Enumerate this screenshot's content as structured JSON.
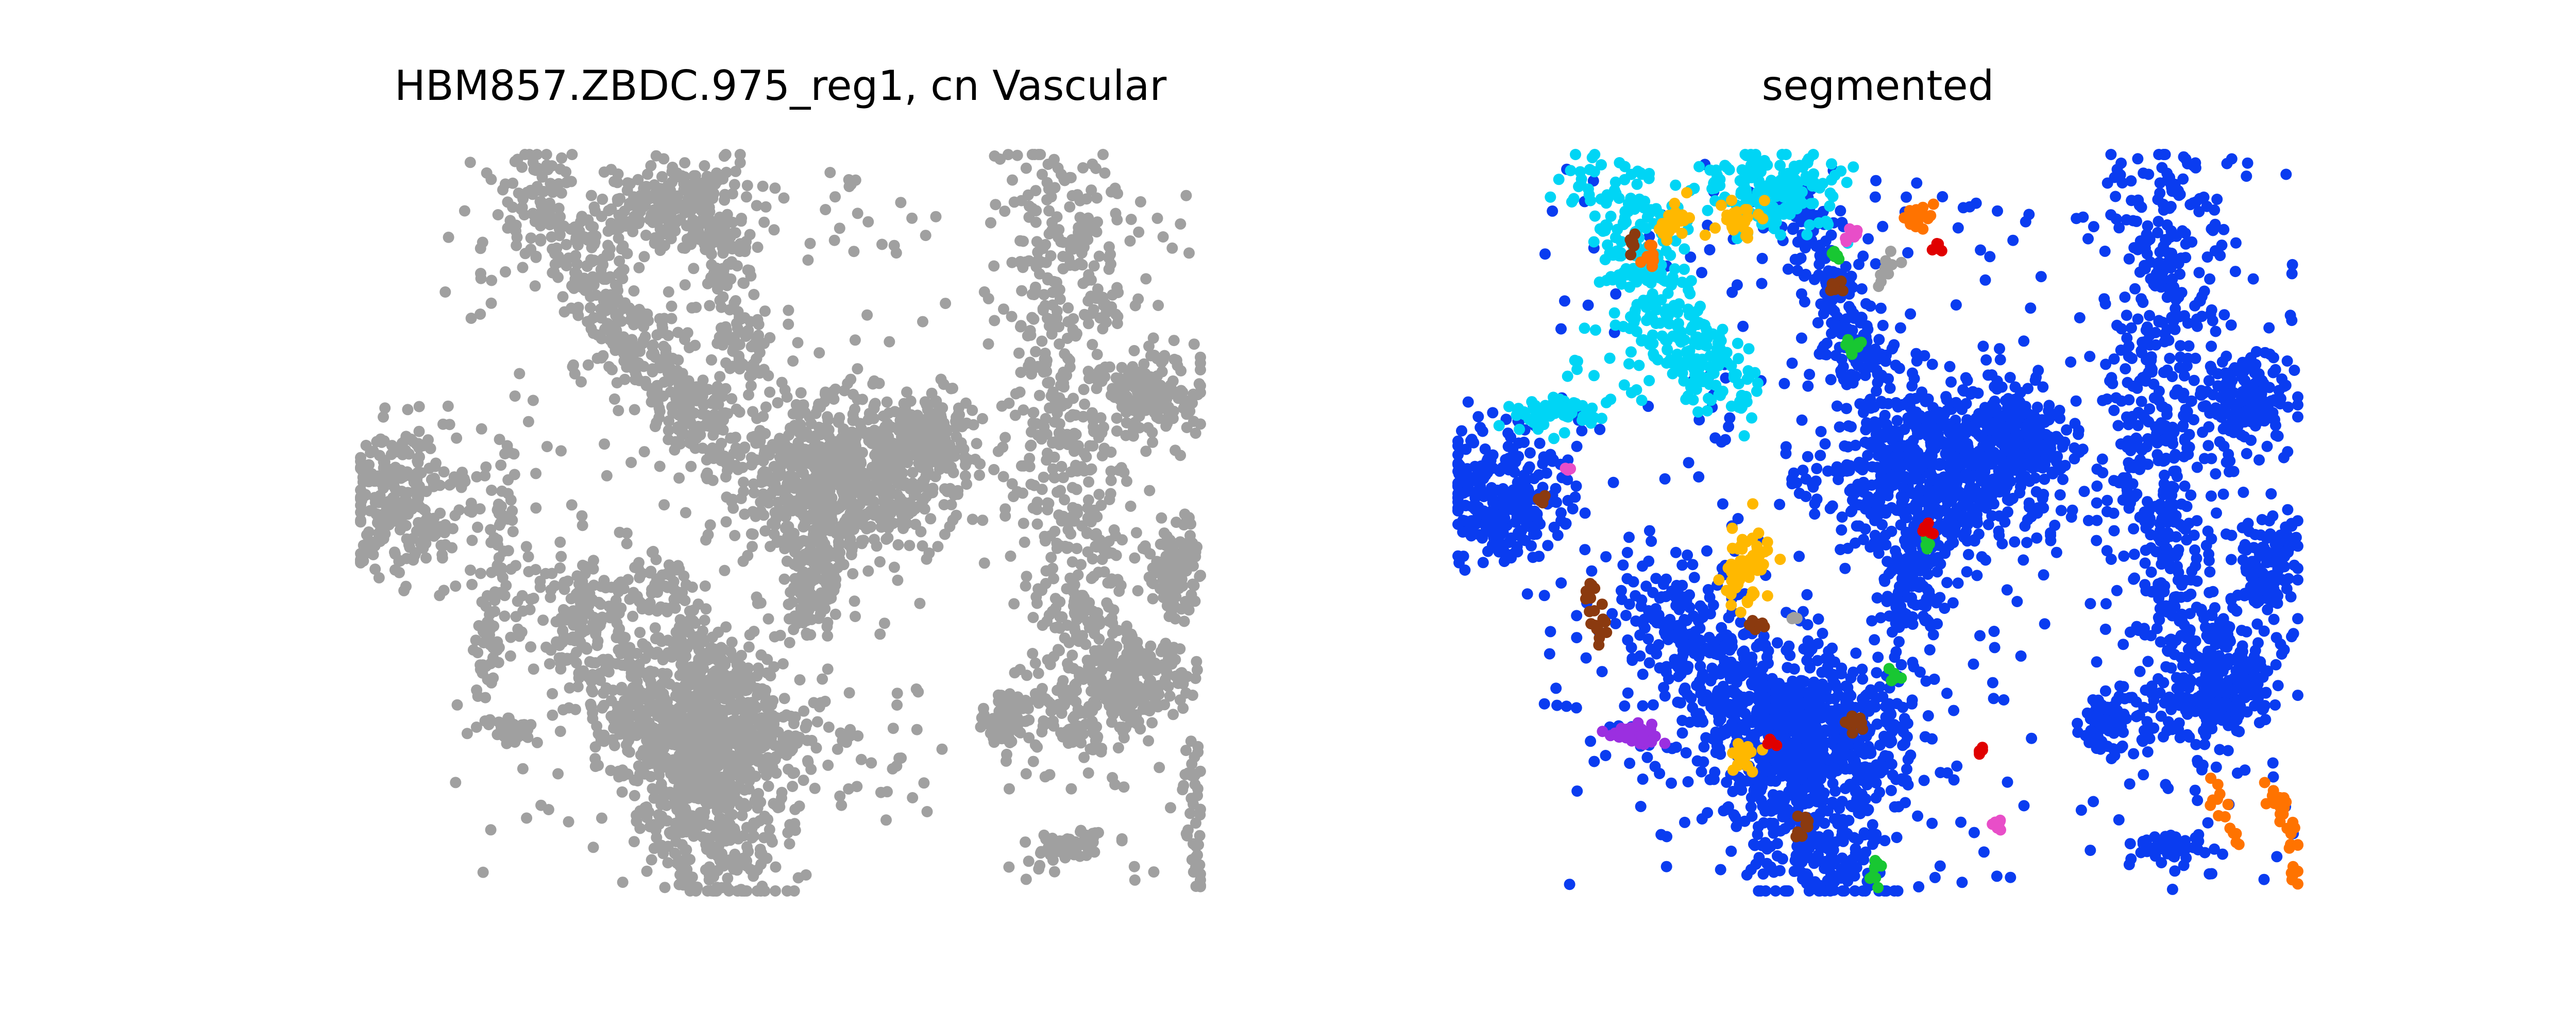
{
  "chart_data": [
    {
      "type": "scatter",
      "title": "HBM857.ZBDC.975_reg1, cn Vascular",
      "axes_visible": false,
      "grid": false,
      "colors": [
        "#a0a0a0"
      ],
      "regions": [
        {
          "name": "",
          "color_index": 0,
          "kind": "blob",
          "cx": 0.05,
          "cy": 0.47,
          "rx": 0.07,
          "ry": 0.09,
          "n": 260
        },
        {
          "name": "",
          "color_index": 0,
          "kind": "band",
          "path": [
            [
              0.2,
              0.02
            ],
            [
              0.26,
              0.14
            ],
            [
              0.32,
              0.25
            ],
            [
              0.38,
              0.33
            ],
            [
              0.42,
              0.38
            ]
          ],
          "width": 0.06,
          "n": 420
        },
        {
          "name": "",
          "color_index": 0,
          "kind": "blob",
          "cx": 0.38,
          "cy": 0.07,
          "rx": 0.08,
          "ry": 0.06,
          "n": 220
        },
        {
          "name": "",
          "color_index": 0,
          "kind": "band",
          "path": [
            [
              0.43,
              0.1
            ],
            [
              0.44,
              0.22
            ],
            [
              0.47,
              0.3
            ]
          ],
          "width": 0.04,
          "n": 110
        },
        {
          "name": "",
          "color_index": 0,
          "kind": "blob",
          "cx": 0.57,
          "cy": 0.43,
          "rx": 0.12,
          "ry": 0.1,
          "n": 700
        },
        {
          "name": "",
          "color_index": 0,
          "kind": "blob",
          "cx": 0.67,
          "cy": 0.38,
          "rx": 0.05,
          "ry": 0.05,
          "n": 160
        },
        {
          "name": "",
          "color_index": 0,
          "kind": "band",
          "path": [
            [
              0.55,
              0.5
            ],
            [
              0.54,
              0.58
            ],
            [
              0.53,
              0.64
            ]
          ],
          "width": 0.04,
          "n": 120
        },
        {
          "name": "",
          "color_index": 0,
          "kind": "band",
          "path": [
            [
              0.23,
              0.58
            ],
            [
              0.28,
              0.66
            ],
            [
              0.33,
              0.74
            ],
            [
              0.38,
              0.82
            ],
            [
              0.42,
              0.92
            ],
            [
              0.44,
              0.99
            ]
          ],
          "width": 0.09,
          "n": 650
        },
        {
          "name": "",
          "color_index": 0,
          "kind": "blob",
          "cx": 0.43,
          "cy": 0.79,
          "rx": 0.11,
          "ry": 0.1,
          "n": 550
        },
        {
          "name": "",
          "color_index": 0,
          "kind": "band",
          "path": [
            [
              0.35,
              0.55
            ],
            [
              0.39,
              0.65
            ],
            [
              0.42,
              0.74
            ]
          ],
          "width": 0.04,
          "n": 130
        },
        {
          "name": "",
          "color_index": 0,
          "kind": "blob",
          "cx": 0.18,
          "cy": 0.78,
          "rx": 0.03,
          "ry": 0.015,
          "n": 40
        },
        {
          "name": "",
          "color_index": 0,
          "kind": "band",
          "path": [
            [
              0.17,
              0.38
            ],
            [
              0.17,
              0.5
            ],
            [
              0.15,
              0.65
            ],
            [
              0.15,
              0.72
            ]
          ],
          "width": 0.02,
          "n": 70
        },
        {
          "name": "",
          "color_index": 0,
          "kind": "sparse",
          "x0": 0.1,
          "x1": 0.7,
          "y0": 0.0,
          "y1": 1.0,
          "n": 260
        },
        {
          "name": "",
          "color_index": 0,
          "kind": "band",
          "path": [
            [
              0.83,
              0.02
            ],
            [
              0.85,
              0.15
            ],
            [
              0.84,
              0.3
            ],
            [
              0.83,
              0.45
            ],
            [
              0.86,
              0.58
            ],
            [
              0.88,
              0.7
            ],
            [
              0.84,
              0.8
            ]
          ],
          "width": 0.08,
          "n": 620
        },
        {
          "name": "",
          "color_index": 0,
          "kind": "blob",
          "cx": 0.94,
          "cy": 0.33,
          "rx": 0.05,
          "ry": 0.05,
          "n": 150
        },
        {
          "name": "",
          "color_index": 0,
          "kind": "blob",
          "cx": 0.97,
          "cy": 0.56,
          "rx": 0.03,
          "ry": 0.06,
          "n": 120
        },
        {
          "name": "",
          "color_index": 0,
          "kind": "blob",
          "cx": 0.92,
          "cy": 0.72,
          "rx": 0.05,
          "ry": 0.06,
          "n": 160
        },
        {
          "name": "",
          "color_index": 0,
          "kind": "blob",
          "cx": 0.77,
          "cy": 0.77,
          "rx": 0.025,
          "ry": 0.04,
          "n": 70
        },
        {
          "name": "",
          "color_index": 0,
          "kind": "blob",
          "cx": 0.84,
          "cy": 0.94,
          "rx": 0.04,
          "ry": 0.02,
          "n": 50
        },
        {
          "name": "",
          "color_index": 0,
          "kind": "band",
          "path": [
            [
              0.99,
              0.8
            ],
            [
              0.99,
              0.9
            ],
            [
              1.0,
              0.99
            ]
          ],
          "width": 0.015,
          "n": 40
        },
        {
          "name": "",
          "color_index": 0,
          "kind": "sparse",
          "x0": 0.74,
          "x1": 1.0,
          "y0": 0.0,
          "y1": 1.0,
          "n": 110
        }
      ]
    },
    {
      "type": "scatter",
      "title": "segmented",
      "axes_visible": false,
      "grid": false,
      "colors": [
        "#0a3cf0",
        "#00d5f5",
        "#ffb800",
        "#ff7300",
        "#8b3a0f",
        "#18c732",
        "#e00000",
        "#e84ec8",
        "#9b2fe0",
        "#a0a0a0"
      ],
      "regions": [
        {
          "name": "",
          "color_index": 0,
          "kind": "blob",
          "cx": 0.05,
          "cy": 0.47,
          "rx": 0.07,
          "ry": 0.09,
          "n": 260
        },
        {
          "name": "",
          "color_index": 0,
          "kind": "blob",
          "cx": 0.57,
          "cy": 0.43,
          "rx": 0.12,
          "ry": 0.1,
          "n": 700
        },
        {
          "name": "",
          "color_index": 0,
          "kind": "blob",
          "cx": 0.67,
          "cy": 0.38,
          "rx": 0.05,
          "ry": 0.05,
          "n": 160
        },
        {
          "name": "",
          "color_index": 0,
          "kind": "band",
          "path": [
            [
              0.4,
              0.05
            ],
            [
              0.44,
              0.15
            ],
            [
              0.47,
              0.25
            ],
            [
              0.5,
              0.3
            ]
          ],
          "width": 0.05,
          "n": 200
        },
        {
          "name": "",
          "color_index": 0,
          "kind": "band",
          "path": [
            [
              0.55,
              0.5
            ],
            [
              0.54,
              0.58
            ],
            [
              0.53,
              0.64
            ]
          ],
          "width": 0.04,
          "n": 120
        },
        {
          "name": "",
          "color_index": 0,
          "kind": "band",
          "path": [
            [
              0.23,
              0.58
            ],
            [
              0.28,
              0.66
            ],
            [
              0.33,
              0.74
            ],
            [
              0.38,
              0.82
            ],
            [
              0.42,
              0.92
            ],
            [
              0.44,
              0.99
            ]
          ],
          "width": 0.09,
          "n": 650
        },
        {
          "name": "",
          "color_index": 0,
          "kind": "blob",
          "cx": 0.43,
          "cy": 0.79,
          "rx": 0.11,
          "ry": 0.1,
          "n": 550
        },
        {
          "name": "",
          "color_index": 0,
          "kind": "sparse",
          "x0": 0.1,
          "x1": 0.7,
          "y0": 0.0,
          "y1": 1.0,
          "n": 260
        },
        {
          "name": "",
          "color_index": 0,
          "kind": "band",
          "path": [
            [
              0.83,
              0.02
            ],
            [
              0.85,
              0.15
            ],
            [
              0.84,
              0.3
            ],
            [
              0.83,
              0.45
            ],
            [
              0.86,
              0.58
            ],
            [
              0.88,
              0.7
            ],
            [
              0.84,
              0.8
            ]
          ],
          "width": 0.08,
          "n": 620
        },
        {
          "name": "",
          "color_index": 0,
          "kind": "blob",
          "cx": 0.94,
          "cy": 0.33,
          "rx": 0.05,
          "ry": 0.05,
          "n": 150
        },
        {
          "name": "",
          "color_index": 0,
          "kind": "blob",
          "cx": 0.97,
          "cy": 0.56,
          "rx": 0.03,
          "ry": 0.06,
          "n": 120
        },
        {
          "name": "",
          "color_index": 0,
          "kind": "blob",
          "cx": 0.92,
          "cy": 0.72,
          "rx": 0.05,
          "ry": 0.06,
          "n": 160
        },
        {
          "name": "",
          "color_index": 0,
          "kind": "blob",
          "cx": 0.77,
          "cy": 0.77,
          "rx": 0.025,
          "ry": 0.04,
          "n": 70
        },
        {
          "name": "",
          "color_index": 0,
          "kind": "blob",
          "cx": 0.84,
          "cy": 0.94,
          "rx": 0.04,
          "ry": 0.02,
          "n": 50
        },
        {
          "name": "",
          "color_index": 0,
          "kind": "sparse",
          "x0": 0.74,
          "x1": 1.0,
          "y0": 0.0,
          "y1": 1.0,
          "n": 110
        },
        {
          "name": "",
          "color_index": 1,
          "kind": "band",
          "path": [
            [
              0.16,
              0.02
            ],
            [
              0.22,
              0.14
            ],
            [
              0.27,
              0.26
            ],
            [
              0.33,
              0.33
            ]
          ],
          "width": 0.06,
          "n": 320
        },
        {
          "name": "",
          "color_index": 1,
          "kind": "blob",
          "cx": 0.37,
          "cy": 0.05,
          "rx": 0.08,
          "ry": 0.05,
          "n": 180
        },
        {
          "name": "",
          "color_index": 1,
          "kind": "blob",
          "cx": 0.11,
          "cy": 0.35,
          "rx": 0.06,
          "ry": 0.02,
          "n": 60
        },
        {
          "name": "",
          "color_index": 1,
          "kind": "sparse",
          "x0": 0.13,
          "x1": 0.25,
          "y0": 0.22,
          "y1": 0.35,
          "n": 18
        },
        {
          "name": "",
          "color_index": 2,
          "kind": "blob",
          "cx": 0.34,
          "cy": 0.56,
          "rx": 0.025,
          "ry": 0.05,
          "n": 70
        },
        {
          "name": "",
          "color_index": 2,
          "kind": "blob",
          "cx": 0.33,
          "cy": 0.09,
          "rx": 0.025,
          "ry": 0.02,
          "n": 30
        },
        {
          "name": "",
          "color_index": 2,
          "kind": "blob",
          "cx": 0.26,
          "cy": 0.09,
          "rx": 0.02,
          "ry": 0.02,
          "n": 20
        },
        {
          "name": "",
          "color_index": 2,
          "kind": "blob",
          "cx": 0.34,
          "cy": 0.82,
          "rx": 0.015,
          "ry": 0.02,
          "n": 20
        },
        {
          "name": "",
          "color_index": 3,
          "kind": "blob",
          "cx": 0.55,
          "cy": 0.08,
          "rx": 0.015,
          "ry": 0.02,
          "n": 20
        },
        {
          "name": "",
          "color_index": 3,
          "kind": "blob",
          "cx": 0.23,
          "cy": 0.14,
          "rx": 0.01,
          "ry": 0.02,
          "n": 10
        },
        {
          "name": "",
          "color_index": 3,
          "kind": "band",
          "path": [
            [
              0.96,
              0.85
            ],
            [
              0.99,
              0.91
            ],
            [
              1.0,
              0.99
            ]
          ],
          "width": 0.015,
          "n": 30
        },
        {
          "name": "",
          "color_index": 3,
          "kind": "band",
          "path": [
            [
              0.9,
              0.86
            ],
            [
              0.93,
              0.94
            ]
          ],
          "width": 0.015,
          "n": 14
        },
        {
          "name": "",
          "color_index": 4,
          "kind": "band",
          "path": [
            [
              0.16,
              0.58
            ],
            [
              0.17,
              0.67
            ]
          ],
          "width": 0.015,
          "n": 20
        },
        {
          "name": "",
          "color_index": 4,
          "kind": "blob",
          "cx": 0.47,
          "cy": 0.77,
          "rx": 0.01,
          "ry": 0.015,
          "n": 12
        },
        {
          "name": "",
          "color_index": 4,
          "kind": "blob",
          "cx": 0.36,
          "cy": 0.64,
          "rx": 0.01,
          "ry": 0.015,
          "n": 10
        },
        {
          "name": "",
          "color_index": 4,
          "kind": "blob",
          "cx": 0.41,
          "cy": 0.91,
          "rx": 0.008,
          "ry": 0.015,
          "n": 8
        },
        {
          "name": "",
          "color_index": 4,
          "kind": "blob",
          "cx": 0.45,
          "cy": 0.18,
          "rx": 0.01,
          "ry": 0.01,
          "n": 8
        },
        {
          "name": "",
          "color_index": 4,
          "kind": "blob",
          "cx": 0.21,
          "cy": 0.12,
          "rx": 0.008,
          "ry": 0.01,
          "n": 6
        },
        {
          "name": "",
          "color_index": 4,
          "kind": "blob",
          "cx": 0.1,
          "cy": 0.47,
          "rx": 0.008,
          "ry": 0.01,
          "n": 6
        },
        {
          "name": "",
          "color_index": 5,
          "kind": "blob",
          "cx": 0.47,
          "cy": 0.26,
          "rx": 0.01,
          "ry": 0.012,
          "n": 12
        },
        {
          "name": "",
          "color_index": 5,
          "kind": "blob",
          "cx": 0.5,
          "cy": 0.98,
          "rx": 0.008,
          "ry": 0.015,
          "n": 8
        },
        {
          "name": "",
          "color_index": 5,
          "kind": "blob",
          "cx": 0.52,
          "cy": 0.71,
          "rx": 0.008,
          "ry": 0.01,
          "n": 6
        },
        {
          "name": "",
          "color_index": 5,
          "kind": "blob",
          "cx": 0.56,
          "cy": 0.53,
          "rx": 0.008,
          "ry": 0.008,
          "n": 5
        },
        {
          "name": "",
          "color_index": 5,
          "kind": "blob",
          "cx": 0.45,
          "cy": 0.14,
          "rx": 0.006,
          "ry": 0.008,
          "n": 5
        },
        {
          "name": "",
          "color_index": 6,
          "kind": "blob",
          "cx": 0.56,
          "cy": 0.51,
          "rx": 0.008,
          "ry": 0.01,
          "n": 6
        },
        {
          "name": "",
          "color_index": 6,
          "kind": "blob",
          "cx": 0.57,
          "cy": 0.13,
          "rx": 0.006,
          "ry": 0.01,
          "n": 6
        },
        {
          "name": "",
          "color_index": 6,
          "kind": "blob",
          "cx": 0.37,
          "cy": 0.8,
          "rx": 0.006,
          "ry": 0.008,
          "n": 5
        },
        {
          "name": "",
          "color_index": 6,
          "kind": "blob",
          "cx": 0.62,
          "cy": 0.81,
          "rx": 0.006,
          "ry": 0.008,
          "n": 5
        },
        {
          "name": "",
          "color_index": 7,
          "kind": "blob",
          "cx": 0.47,
          "cy": 0.11,
          "rx": 0.008,
          "ry": 0.012,
          "n": 8
        },
        {
          "name": "",
          "color_index": 7,
          "kind": "blob",
          "cx": 0.64,
          "cy": 0.91,
          "rx": 0.008,
          "ry": 0.012,
          "n": 8
        },
        {
          "name": "",
          "color_index": 7,
          "kind": "blob",
          "cx": 0.13,
          "cy": 0.43,
          "rx": 0.005,
          "ry": 0.006,
          "n": 3
        },
        {
          "name": "",
          "color_index": 8,
          "kind": "blob",
          "cx": 0.21,
          "cy": 0.79,
          "rx": 0.03,
          "ry": 0.015,
          "n": 40
        },
        {
          "name": "",
          "color_index": 9,
          "kind": "band",
          "path": [
            [
              0.52,
              0.13
            ],
            [
              0.5,
              0.18
            ]
          ],
          "width": 0.01,
          "n": 10
        },
        {
          "name": "",
          "color_index": 9,
          "kind": "blob",
          "cx": 0.4,
          "cy": 0.63,
          "rx": 0.006,
          "ry": 0.006,
          "n": 3
        }
      ]
    }
  ]
}
